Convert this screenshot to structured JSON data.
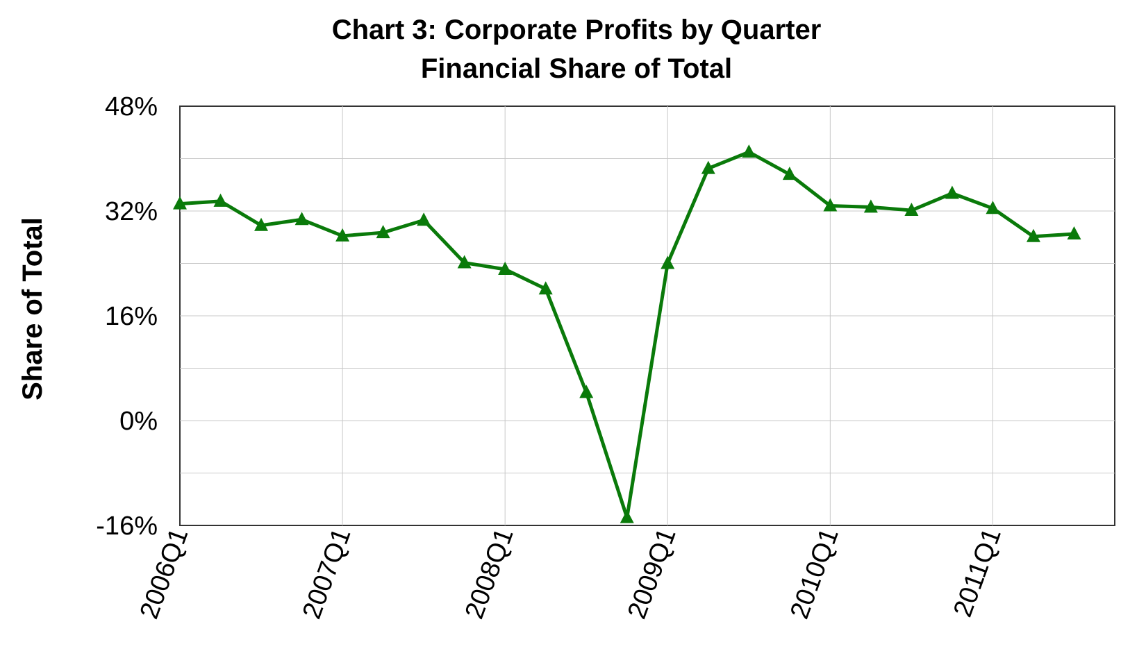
{
  "chart_data": {
    "type": "line",
    "title": "Chart 3:  Corporate Profits by Quarter",
    "subtitle": "Financial Share of Total",
    "xlabel": "",
    "ylabel": "Share of Total",
    "ylim": [
      -16,
      48
    ],
    "yticks": [
      -16,
      0,
      16,
      32,
      48
    ],
    "ytick_labels": [
      "-16%",
      "0%",
      "16%",
      "32%",
      "48%"
    ],
    "ygrid_step": 8,
    "x": [
      "2006Q1",
      "2006Q2",
      "2006Q3",
      "2006Q4",
      "2007Q1",
      "2007Q2",
      "2007Q3",
      "2007Q4",
      "2008Q1",
      "2008Q2",
      "2008Q3",
      "2008Q4",
      "2009Q1",
      "2009Q2",
      "2009Q3",
      "2009Q4",
      "2010Q1",
      "2010Q2",
      "2010Q3",
      "2010Q4",
      "2011Q1",
      "2011Q2",
      "2011Q3"
    ],
    "xtick_labels": [
      "2006Q1",
      "2007Q1",
      "2008Q1",
      "2009Q1",
      "2010Q1",
      "2011Q1"
    ],
    "grid": true,
    "legend": "none",
    "series": [
      {
        "marker": "triangle",
        "color": "#0a7a0a",
        "values": [
          33.1,
          33.5,
          29.8,
          30.7,
          28.2,
          28.7,
          30.6,
          24.1,
          23.1,
          20.1,
          4.3,
          -14.8,
          24.0,
          38.5,
          41.0,
          37.6,
          32.8,
          32.6,
          32.1,
          34.7,
          32.4,
          28.1,
          28.5
        ]
      }
    ]
  }
}
